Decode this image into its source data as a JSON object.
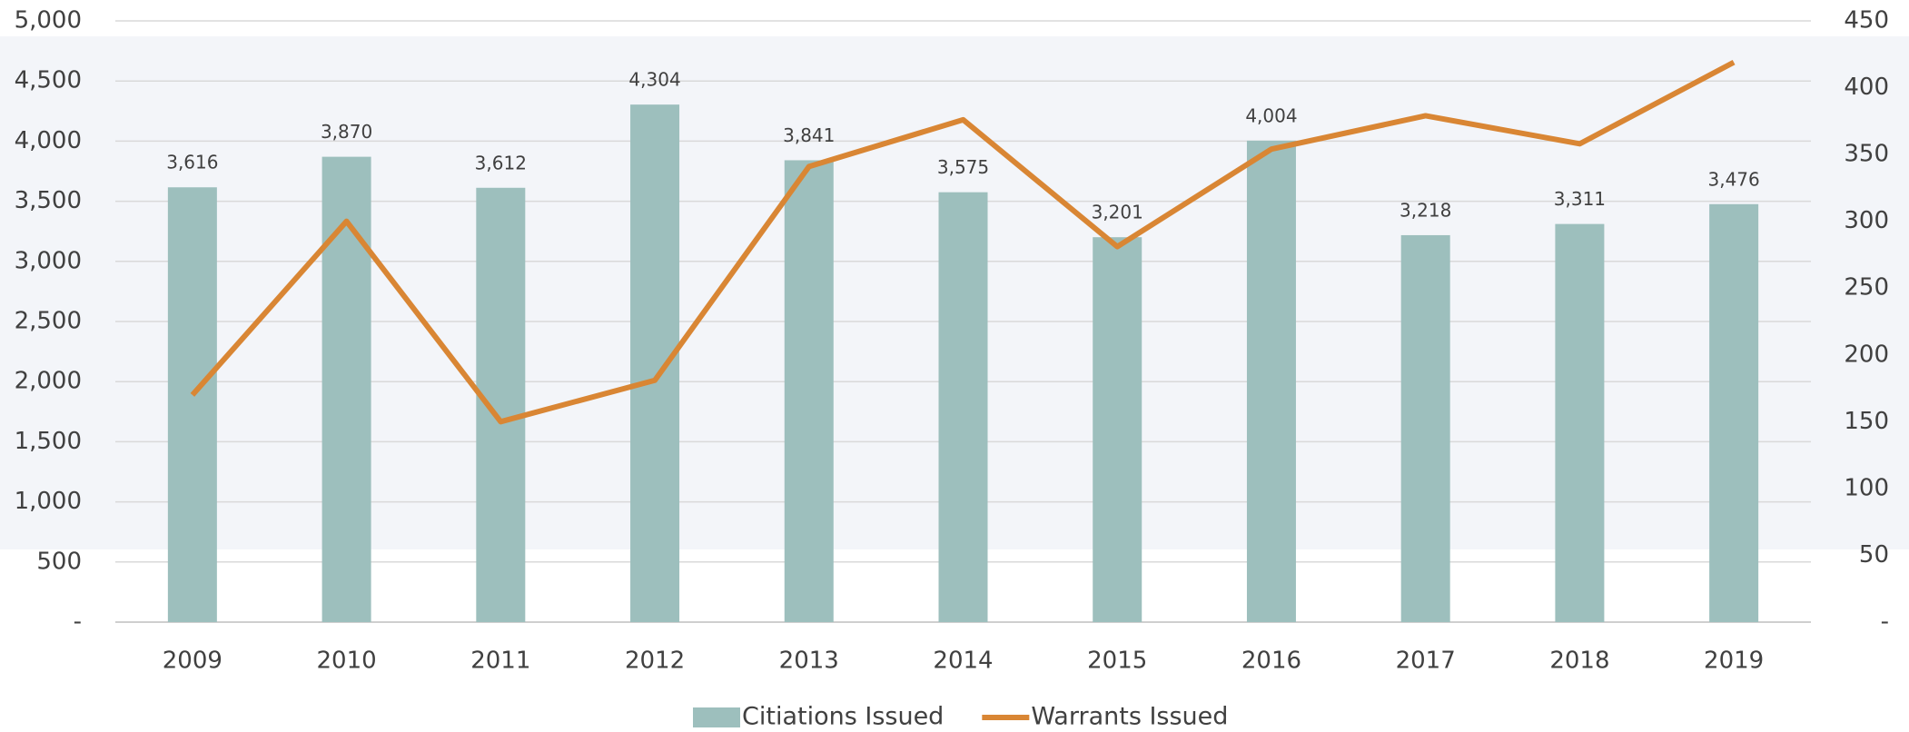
{
  "chart_data": {
    "type": "bar_line",
    "categories": [
      "2009",
      "2010",
      "2011",
      "2012",
      "2013",
      "2014",
      "2015",
      "2016",
      "2017",
      "2018",
      "2019"
    ],
    "series": [
      {
        "name": "Citiations Issued",
        "type": "bar",
        "color": "#9dbfbd",
        "values": [
          3616,
          3870,
          3612,
          4304,
          3841,
          3575,
          3201,
          4004,
          3218,
          3311,
          3476
        ],
        "value_labels": [
          "3,616",
          "3,870",
          "3,612",
          "4,304",
          "3,841",
          "3,575",
          "3,201",
          "4,004",
          "3,218",
          "3,311",
          "3,476"
        ]
      },
      {
        "name": "Warrants Issued",
        "type": "line",
        "axis": "y2",
        "color": "#d98634",
        "values": [
          170,
          300,
          150,
          181,
          341,
          376,
          281,
          354,
          379,
          358,
          419
        ]
      }
    ],
    "ylim": [
      0,
      5000
    ],
    "yticks": [
      {
        "value": 0,
        "label": "-"
      },
      {
        "value": 500,
        "label": "500"
      },
      {
        "value": 1000,
        "label": "1,000"
      },
      {
        "value": 1500,
        "label": "1,500"
      },
      {
        "value": 2000,
        "label": "2,000"
      },
      {
        "value": 2500,
        "label": "2,500"
      },
      {
        "value": 3000,
        "label": "3,000"
      },
      {
        "value": 3500,
        "label": "3,500"
      },
      {
        "value": 4000,
        "label": "4,000"
      },
      {
        "value": 4500,
        "label": "4,500"
      },
      {
        "value": 5000,
        "label": "5,000"
      }
    ],
    "y2lim": [
      0,
      450
    ],
    "y2ticks": [
      {
        "value": 0,
        "label": "-"
      },
      50,
      100,
      150,
      200,
      250,
      300,
      350,
      400,
      450
    ],
    "grid": true,
    "legend": "bottom"
  }
}
